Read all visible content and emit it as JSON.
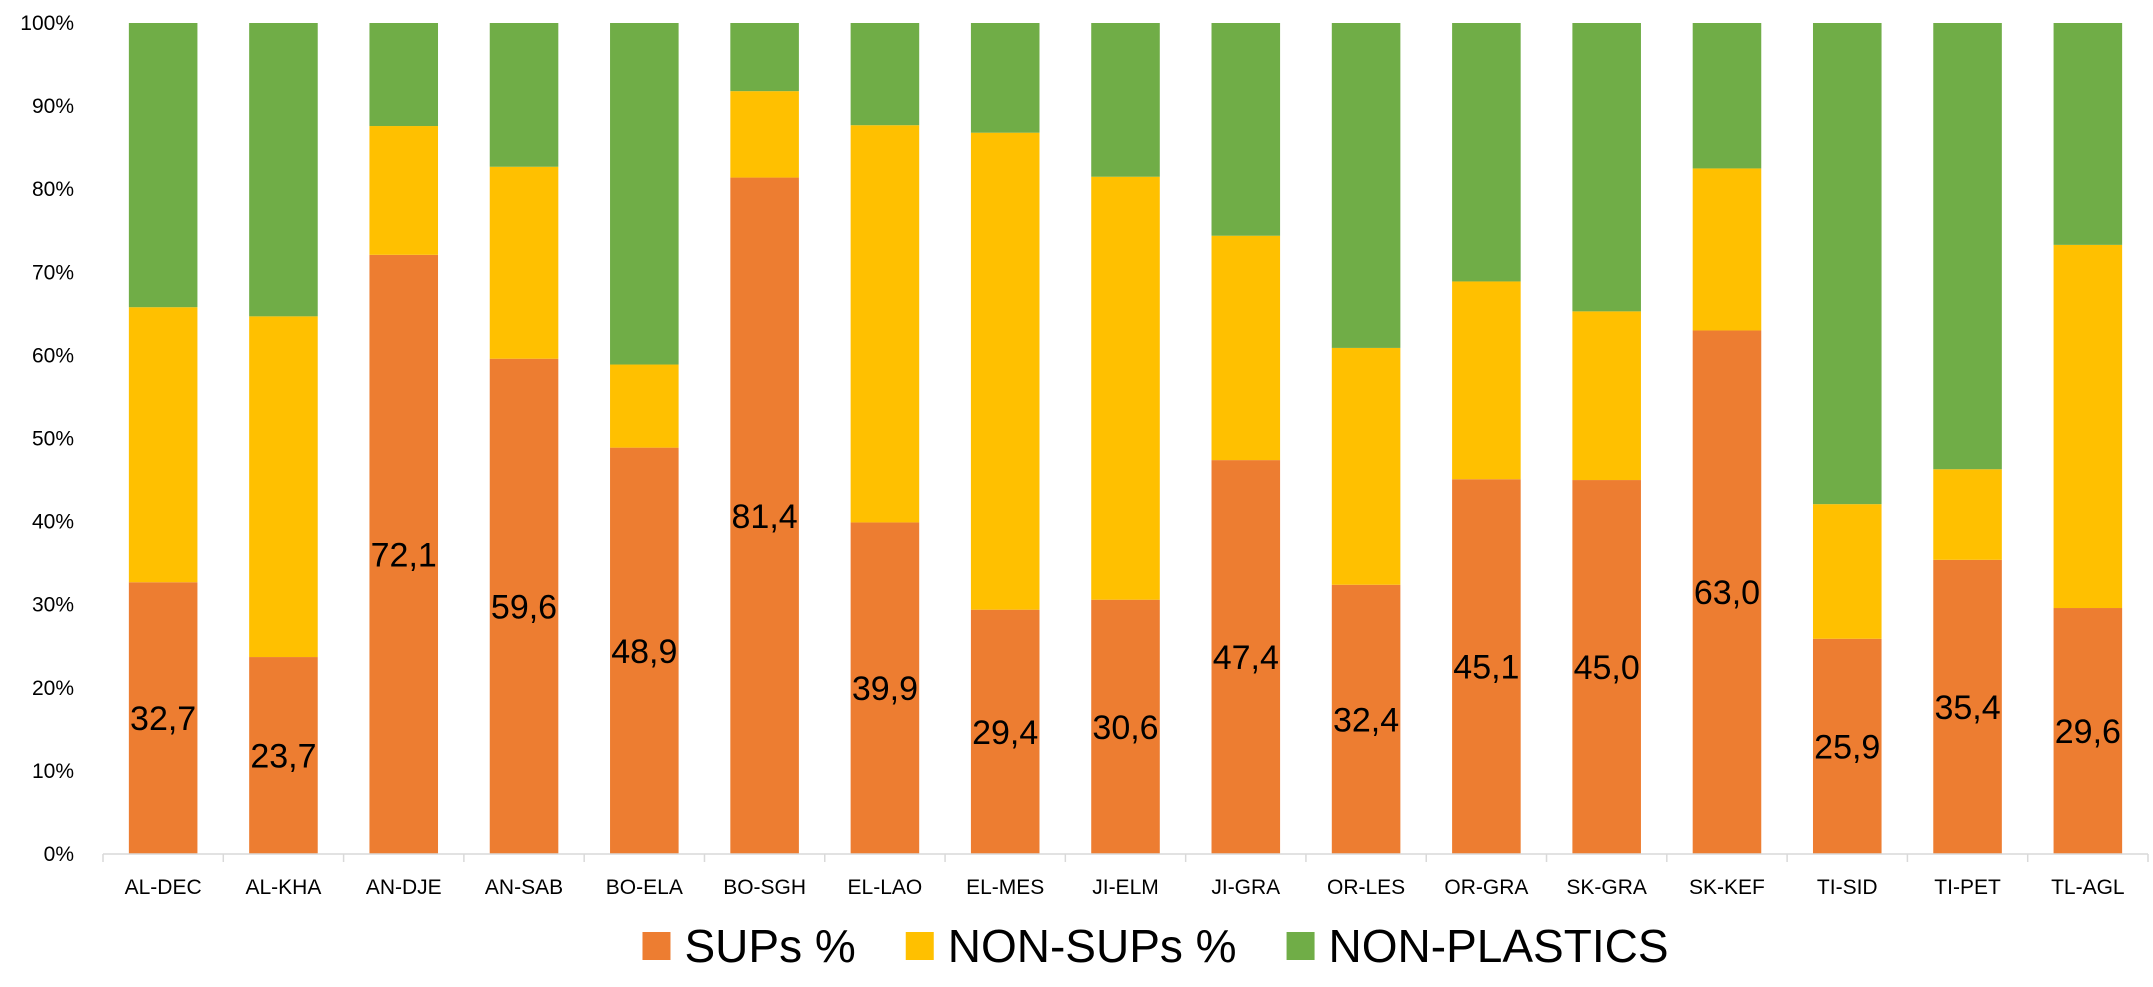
{
  "chart_data": {
    "type": "bar",
    "stacked": true,
    "percent_stacked": true,
    "categories": [
      "AL-DEC",
      "AL-KHA",
      "AN-DJE",
      "AN-SAB",
      "BO-ELA",
      "BO-SGH",
      "EL-LAO",
      "EL-MES",
      "JI-ELM",
      "JI-GRA",
      "OR-LES",
      "OR-GRA",
      "SK-GRA",
      "SK-KEF",
      "TI-SID",
      "TI-PET",
      "TL-AGL"
    ],
    "series": [
      {
        "name": "SUPs %",
        "color": "#ED7D31",
        "values": [
          32.7,
          23.7,
          72.1,
          59.6,
          48.9,
          81.4,
          39.9,
          29.4,
          30.6,
          47.4,
          32.4,
          45.1,
          45.0,
          63.0,
          25.9,
          35.4,
          29.6
        ],
        "data_labels": [
          "32,7",
          "23,7",
          "72,1",
          "59,6",
          "48,9",
          "81,4",
          "39,9",
          "29,4",
          "30,6",
          "47,4",
          "32,4",
          "45,1",
          "45,0",
          "63,0",
          "25,9",
          "35,4",
          "29,6"
        ]
      },
      {
        "name": "NON-SUPs %",
        "color": "#FFC000",
        "values": [
          33.1,
          41.0,
          15.5,
          23.1,
          10.0,
          10.4,
          47.8,
          57.4,
          50.9,
          27.0,
          28.5,
          23.8,
          20.3,
          19.5,
          16.2,
          10.9,
          43.7
        ]
      },
      {
        "name": "NON-PLASTICS",
        "color": "#70AD47",
        "values": [
          34.2,
          35.3,
          12.4,
          17.3,
          41.1,
          8.2,
          12.3,
          13.2,
          18.5,
          25.6,
          39.1,
          31.1,
          34.7,
          17.5,
          57.9,
          53.7,
          26.7
        ]
      }
    ],
    "y_ticks": [
      "0%",
      "10%",
      "20%",
      "30%",
      "40%",
      "50%",
      "60%",
      "70%",
      "80%",
      "90%",
      "100%"
    ],
    "ylim": [
      0,
      100
    ],
    "title": "",
    "xlabel": "",
    "ylabel": "",
    "grid": false,
    "legend_position": "bottom"
  }
}
